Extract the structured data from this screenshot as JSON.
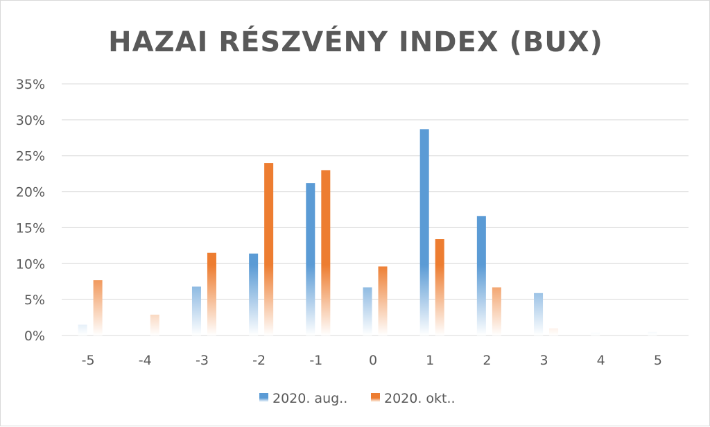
{
  "chart_data": {
    "type": "bar",
    "title": "HAZAI RÉSZVÉNY INDEX (BUX)",
    "xlabel": "",
    "ylabel": "",
    "categories": [
      "-5",
      "-4",
      "-3",
      "-2",
      "-1",
      "0",
      "1",
      "2",
      "3",
      "4",
      "5"
    ],
    "yticks": [
      "0%",
      "5%",
      "10%",
      "15%",
      "20%",
      "25%",
      "30%",
      "35%"
    ],
    "ylim": [
      0,
      35
    ],
    "grid": true,
    "legend_position": "bottom",
    "series": [
      {
        "name": "2020. aug..",
        "color": "#5b9bd5",
        "values": [
          1.5,
          0,
          6.8,
          11.4,
          21.2,
          6.7,
          28.7,
          16.6,
          5.9,
          0.4,
          0.5
        ]
      },
      {
        "name": "2020. okt..",
        "color": "#ed7d31",
        "values": [
          7.7,
          2.9,
          11.5,
          24.0,
          23.0,
          9.6,
          13.4,
          6.7,
          1.0,
          0,
          0
        ]
      }
    ]
  }
}
